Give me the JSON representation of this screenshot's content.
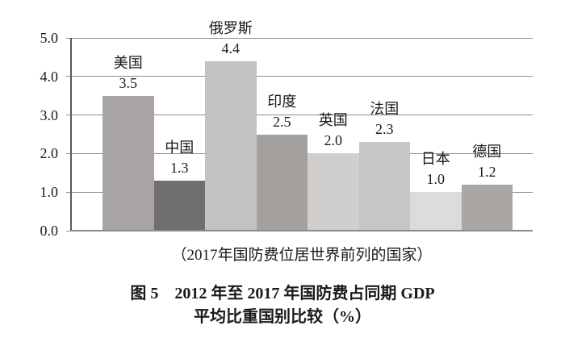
{
  "chart_data": {
    "type": "bar",
    "title_line1": "图 5　2012 年至 2017 年国防费占同期 GDP",
    "title_line2": "平均比重国别比较（%）",
    "subtitle": "（2017年国防费位居世界前列的国家）",
    "categories": [
      "美国",
      "中国",
      "俄罗斯",
      "印度",
      "英国",
      "法国",
      "日本",
      "德国"
    ],
    "values": [
      3.5,
      1.3,
      4.4,
      2.5,
      2.0,
      2.3,
      1.0,
      1.2
    ],
    "value_labels": [
      "3.5",
      "1.3",
      "4.4",
      "2.5",
      "2.0",
      "2.3",
      "1.0",
      "1.2"
    ],
    "bar_colors": [
      "#a7a4a3",
      "#716e6e",
      "#c5c3c2",
      "#a3a09e",
      "#d1cfce",
      "#c8c6c5",
      "#dddcdb",
      "#a9a6a4"
    ],
    "y_ticks": [
      "5.0",
      "4.0",
      "3.0",
      "2.0",
      "1.0",
      "0.0"
    ],
    "ylim": [
      0,
      5
    ],
    "y_major_step": 1.0,
    "grid": "horizontal-major",
    "legend": "none"
  }
}
